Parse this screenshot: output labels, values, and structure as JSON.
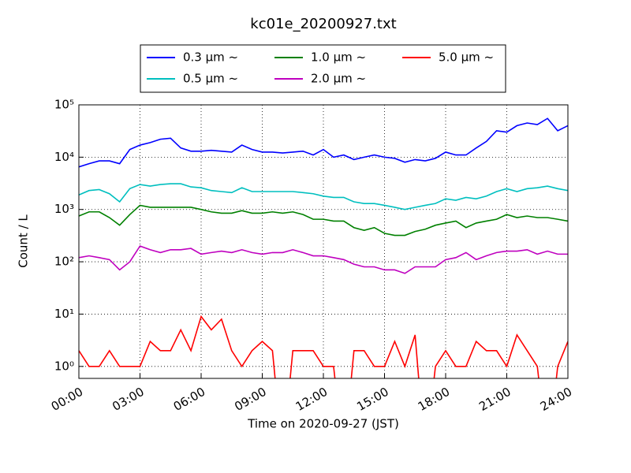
{
  "chart_data": {
    "type": "line",
    "title": "kc01e_20200927.txt",
    "x_label": "Time on 2020-09-27 (JST)",
    "y_label": "Count / L",
    "log_y": true,
    "grid": true,
    "legend_position": "upper center",
    "xlim": [
      0,
      24
    ],
    "ylim": [
      0.59,
      100000
    ],
    "xticks": [
      {
        "value": 0,
        "label": "00:00"
      },
      {
        "value": 3,
        "label": "03:00"
      },
      {
        "value": 6,
        "label": "06:00"
      },
      {
        "value": 9,
        "label": "09:00"
      },
      {
        "value": 12,
        "label": "12:00"
      },
      {
        "value": 15,
        "label": "15:00"
      },
      {
        "value": 18,
        "label": "18:00"
      },
      {
        "value": 21,
        "label": "21:00"
      },
      {
        "value": 24,
        "label": "24:00"
      }
    ],
    "yticks": [
      {
        "value": 1,
        "label": "10⁰"
      },
      {
        "value": 10,
        "label": "10¹"
      },
      {
        "value": 100,
        "label": "10²"
      },
      {
        "value": 1000,
        "label": "10³"
      },
      {
        "value": 10000,
        "label": "10⁴"
      },
      {
        "value": 100000,
        "label": "10⁵"
      }
    ],
    "x": [
      0,
      0.5,
      1,
      1.5,
      2,
      2.5,
      3,
      3.5,
      4,
      4.5,
      5,
      5.5,
      6,
      6.5,
      7,
      7.5,
      8,
      8.5,
      9,
      9.5,
      10,
      10.5,
      11,
      11.5,
      12,
      12.5,
      13,
      13.5,
      14,
      14.5,
      15,
      15.5,
      16,
      16.5,
      17,
      17.5,
      18,
      18.5,
      19,
      19.5,
      20,
      20.5,
      21,
      21.5,
      22,
      22.5,
      23,
      23.5,
      24
    ],
    "series": [
      {
        "name": "0.3 μm ~",
        "color": "#0000ff",
        "values": [
          6500,
          7500,
          8500,
          8500,
          7500,
          14000,
          17000,
          19000,
          22000,
          23000,
          15000,
          13000,
          13000,
          13500,
          13000,
          12500,
          17000,
          14000,
          12500,
          12500,
          12000,
          12500,
          13000,
          11000,
          14000,
          10000,
          11000,
          9000,
          10000,
          11000,
          10000,
          9500,
          8000,
          9000,
          8500,
          9500,
          12500,
          11000,
          11000,
          15000,
          20000,
          32000,
          30000,
          40000,
          45000,
          42000,
          55000,
          32000,
          40000
        ]
      },
      {
        "name": "0.5 μm ~",
        "color": "#00bfbf",
        "values": [
          1900,
          2300,
          2400,
          2000,
          1400,
          2500,
          3000,
          2800,
          3000,
          3100,
          3100,
          2700,
          2600,
          2300,
          2200,
          2100,
          2600,
          2200,
          2200,
          2200,
          2200,
          2200,
          2100,
          2000,
          1800,
          1700,
          1700,
          1400,
          1300,
          1300,
          1200,
          1100,
          1000,
          1100,
          1200,
          1300,
          1600,
          1500,
          1700,
          1600,
          1800,
          2200,
          2500,
          2200,
          2500,
          2600,
          2800,
          2500,
          2300
        ]
      },
      {
        "name": "1.0 μm ~",
        "color": "#008000",
        "values": [
          750,
          900,
          900,
          700,
          500,
          800,
          1200,
          1100,
          1100,
          1100,
          1100,
          1100,
          1000,
          900,
          850,
          850,
          950,
          850,
          850,
          900,
          850,
          900,
          800,
          650,
          650,
          600,
          600,
          450,
          400,
          450,
          350,
          320,
          320,
          380,
          420,
          500,
          550,
          600,
          450,
          550,
          600,
          650,
          800,
          700,
          750,
          700,
          700,
          650,
          600
        ]
      },
      {
        "name": "2.0 μm ~",
        "color": "#bf00bf",
        "values": [
          120,
          130,
          120,
          110,
          70,
          100,
          200,
          170,
          150,
          170,
          170,
          180,
          140,
          150,
          160,
          150,
          170,
          150,
          140,
          150,
          150,
          170,
          150,
          130,
          130,
          120,
          110,
          90,
          80,
          80,
          70,
          70,
          60,
          80,
          80,
          80,
          110,
          120,
          150,
          110,
          130,
          150,
          160,
          160,
          170,
          140,
          160,
          140,
          140
        ]
      },
      {
        "name": "5.0 μm ~",
        "color": "#ff0000",
        "values": [
          2,
          1,
          1,
          2,
          1,
          1,
          1,
          3,
          2,
          2,
          5,
          2,
          9,
          5,
          8,
          2,
          1,
          2,
          3,
          2,
          0,
          2,
          2,
          2,
          1,
          1,
          0,
          2,
          2,
          1,
          1,
          3,
          1,
          4,
          0,
          1,
          2,
          1,
          1,
          3,
          2,
          2,
          1,
          4,
          2,
          1,
          0,
          1,
          3
        ]
      }
    ]
  }
}
